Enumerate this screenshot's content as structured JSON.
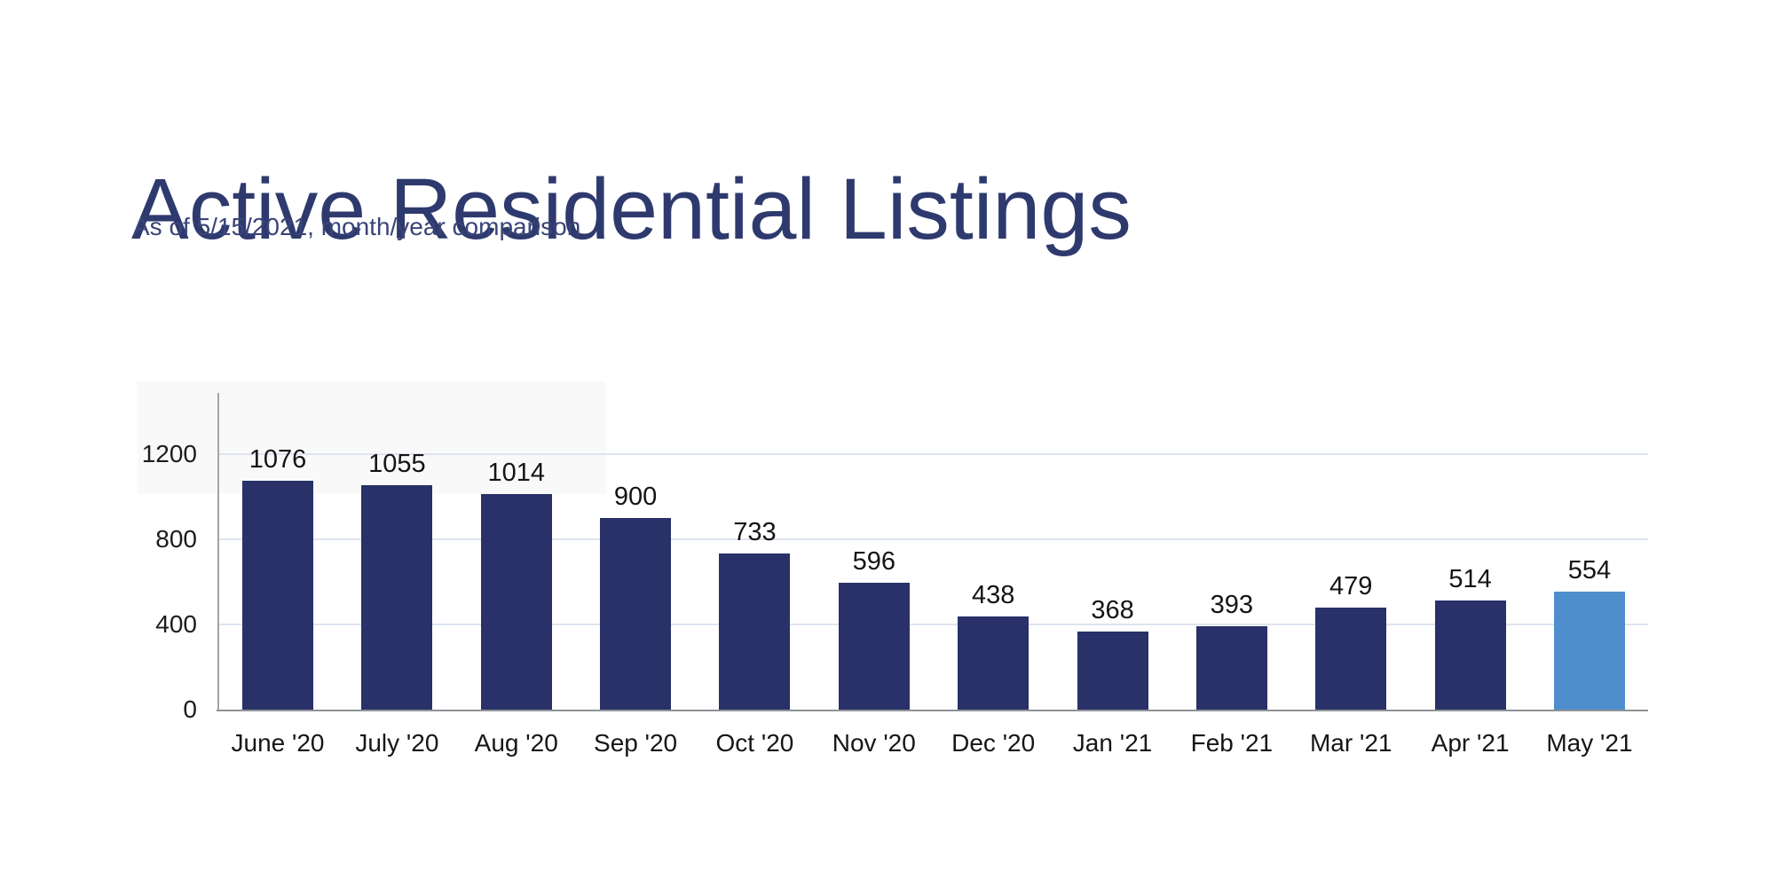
{
  "page": {
    "title": "Active Residential Listings",
    "subtitle": "As of 5/15/2021, month/year comparison"
  },
  "chart_data": {
    "type": "bar",
    "title": "Active Residential Listings",
    "subtitle": "As of 5/15/2021, month/year comparison",
    "categories": [
      "June '20",
      "July '20",
      "Aug '20",
      "Sep '20",
      "Oct '20",
      "Nov '20",
      "Dec '20",
      "Jan '21",
      "Feb '21",
      "Mar '21",
      "Apr '21",
      "May '21"
    ],
    "values": [
      1076,
      1055,
      1014,
      900,
      733,
      596,
      438,
      368,
      393,
      479,
      514,
      554
    ],
    "highlight_index": 11,
    "y_ticks": [
      0,
      400,
      800,
      1200
    ],
    "ylim": [
      0,
      1490
    ],
    "xlabel": "",
    "ylabel": "",
    "grid": true,
    "legend": "none",
    "colors": {
      "bar": "#293168",
      "highlight_bar": "#4E8ECD",
      "gridline": "#DEE4F0",
      "axis": "#A3A5A8",
      "baseline": "#8F9296",
      "title": "#2E3A6E",
      "subtitle": "#3A4478",
      "label": "#141414"
    }
  }
}
